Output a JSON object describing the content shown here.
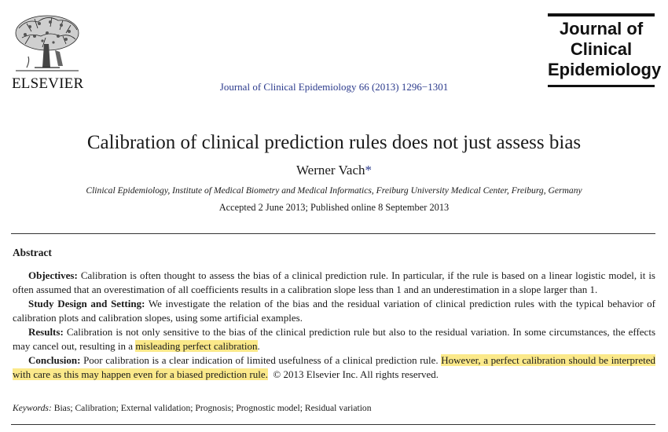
{
  "header": {
    "publisher": "ELSEVIER",
    "citation": "Journal of Clinical Epidemiology 66 (2013) 1296−1301",
    "journal_name": "Journal of Clinical Epidemiology",
    "logo_icon": "elsevier-tree-icon",
    "citation_color": "#2b3a8c"
  },
  "article": {
    "title": "Calibration of clinical prediction rules does not just assess bias",
    "author": "Werner Vach",
    "author_mark": "*",
    "affiliation": "Clinical Epidemiology, Institute of Medical Biometry and Medical Informatics, Freiburg University Medical Center, Freiburg, Germany",
    "dates": "Accepted 2 June 2013; Published online 8 September 2013"
  },
  "abstract": {
    "heading": "Abstract",
    "objectives_label": "Objectives:",
    "objectives_text": "Calibration is often thought to assess the bias of a clinical prediction rule. In particular, if the rule is based on a linear logistic model, it is often assumed that an overestimation of all coefficients results in a calibration slope less than 1 and an underestimation in a slope larger than 1.",
    "design_label": "Study Design and Setting:",
    "design_text": "We investigate the relation of the bias and the residual variation of clinical prediction rules with the typical behavior of calibration plots and calibration slopes, using some artificial examples.",
    "results_label": "Results:",
    "results_text": "Calibration is not only sensitive to the bias of the clinical prediction rule but also to the residual variation. In some circumstances, the effects may cancel out, resulting in a",
    "results_highlight": "misleading perfect calibration",
    "results_end": ".",
    "conclusion_label": "Conclusion:",
    "conclusion_text": "Poor calibration is a clear indication of limited usefulness of a clinical prediction rule.",
    "conclusion_highlight": "However, a perfect calibration should be interpreted with care as this may happen even for a biased prediction rule.",
    "copyright": "© 2013 Elsevier Inc. All rights reserved.",
    "highlight_color": "#fbe98a"
  },
  "keywords": {
    "label": "Keywords:",
    "list": "Bias; Calibration; External validation; Prognosis; Prognostic model; Residual variation"
  }
}
